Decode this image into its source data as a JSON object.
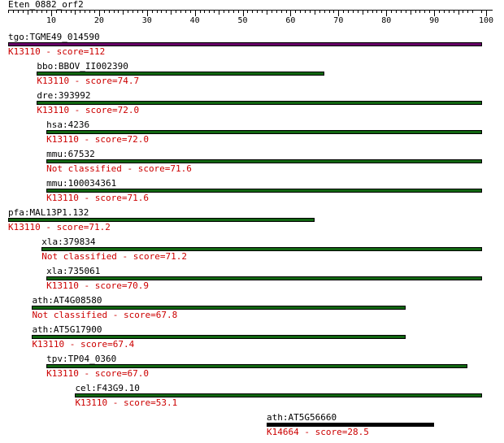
{
  "query": {
    "name": "Eten_0882_orf2"
  },
  "ruler": {
    "labels": [
      "10",
      "20",
      "30",
      "40",
      "50",
      "60",
      "70",
      "80",
      "90",
      "100"
    ]
  },
  "colors": {
    "bar_top": "#660066",
    "bar_normal": "#116611",
    "bar_other": "#000000",
    "label_red": "#cc0000"
  },
  "hits": [
    {
      "name": "tgo:TGME49_014590",
      "annotation": "K13110 - score=112",
      "start": 1,
      "end": 100
    },
    {
      "name": "bbo:BBOV_II002390",
      "annotation": "K13110 - score=74.7",
      "start": 7,
      "end": 67
    },
    {
      "name": "dre:393992",
      "annotation": "K13110 - score=72.0",
      "start": 7,
      "end": 100
    },
    {
      "name": "hsa:4236",
      "annotation": "K13110 - score=72.0",
      "start": 9,
      "end": 100
    },
    {
      "name": "mmu:67532",
      "annotation": "Not classified - score=71.6",
      "start": 9,
      "end": 100
    },
    {
      "name": "mmu:100034361",
      "annotation": "K13110 - score=71.6",
      "start": 9,
      "end": 100
    },
    {
      "name": "pfa:MAL13P1.132",
      "annotation": "K13110 - score=71.2",
      "start": 1,
      "end": 65
    },
    {
      "name": "xla:379834",
      "annotation": "Not classified - score=71.2",
      "start": 8,
      "end": 100
    },
    {
      "name": "xla:735061",
      "annotation": "K13110 - score=70.9",
      "start": 9,
      "end": 100
    },
    {
      "name": "ath:AT4G08580",
      "annotation": "Not classified - score=67.8",
      "start": 6,
      "end": 84
    },
    {
      "name": "ath:AT5G17900",
      "annotation": "K13110 - score=67.4",
      "start": 6,
      "end": 84
    },
    {
      "name": "tpv:TP04_0360",
      "annotation": "K13110 - score=67.0",
      "start": 9,
      "end": 97
    },
    {
      "name": "cel:F43G9.10",
      "annotation": "K13110 - score=53.1",
      "start": 15,
      "end": 100
    },
    {
      "name": "ath:AT5G56660",
      "annotation": "K14664 - score=28.5",
      "start": 55,
      "end": 90
    }
  ]
}
